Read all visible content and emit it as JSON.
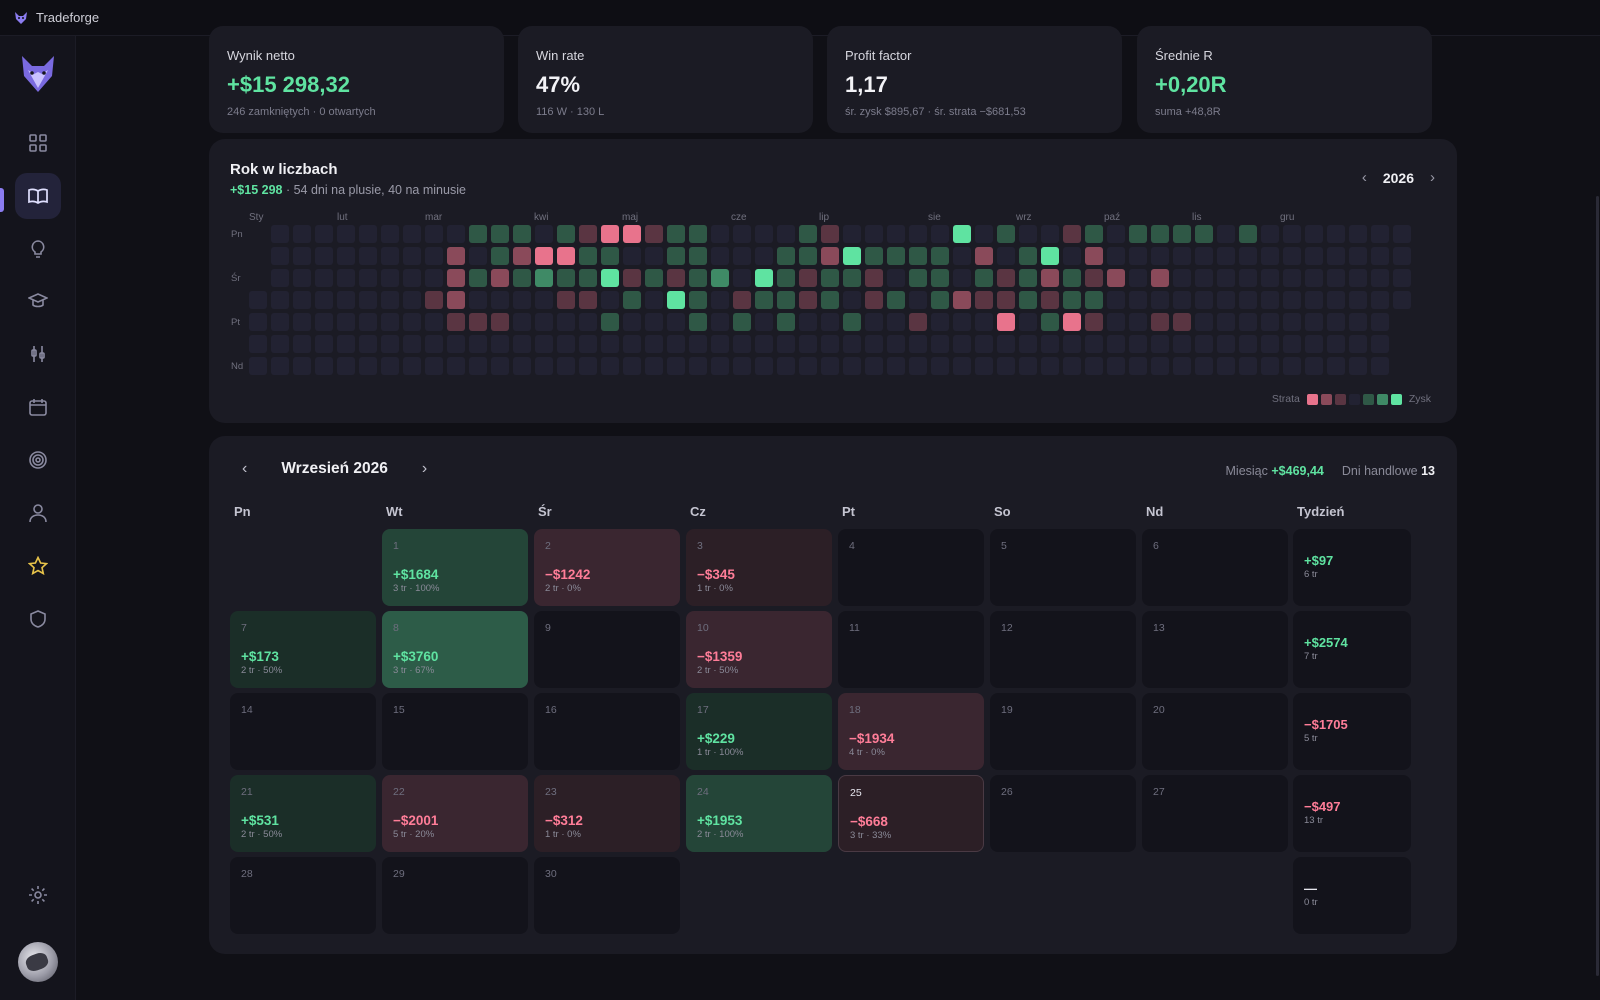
{
  "app": {
    "title": "Tradeforge"
  },
  "stats": [
    {
      "label": "Wynik netto",
      "value": "+$15 298,32",
      "sub": "246 zamkniętych · 0 otwartych",
      "accent": "green"
    },
    {
      "label": "Win rate",
      "value": "47%",
      "sub": "116 W · 130 L",
      "accent": "white"
    },
    {
      "label": "Profit factor",
      "value": "1,17",
      "sub": "śr. zysk $895,67 · śr. strata −$681,53",
      "accent": "white"
    },
    {
      "label": "Średnie R",
      "value": "+0,20R",
      "sub": "suma +48,8R",
      "accent": "green"
    }
  ],
  "year": {
    "title": "Rok w liczbach",
    "total": "+$15 298",
    "summary": " · 54 dni na plusie, 40 na minusie",
    "year": "2026",
    "months": [
      "Sty",
      "lut",
      "mar",
      "kwi",
      "maj",
      "cze",
      "lip",
      "sie",
      "wrz",
      "paź",
      "lis",
      "gru"
    ],
    "day_labels": [
      "Pn",
      "Śr",
      "Pt",
      "Nd"
    ],
    "legend_loss": "Strata",
    "legend_gain": "Zysk",
    "colors": {
      "empty": "#222232",
      "g1": "#2f5846",
      "g2": "#3f8a66",
      "g3": "#5fe3a1",
      "r1": "#5a3542",
      "r2": "#8a4a5a",
      "r3": "#e8738c"
    },
    "levels": [
      "..........ggg.gvvvvgg....gv.......g..vg.gggg.g...................",
      ".........r.grRrgg..gg...ggr.gggg.r.gG.r.........................",
      ".........rgrgGgg.vgvgG.ggvggv.gg.gvgrgvr.r......................",
      "........vr....vv.g.Gg.vggvg.vg.grvvgvgg......................",
      ".........vvv....g...g.g.g..g..v.....gRv..vv....................."
    ]
  },
  "calendar": {
    "title": "Wrzesień 2026",
    "month_label": "Miesiąc",
    "month_total": "+$469,44",
    "days_label": "Dni handlowe",
    "days_count": "13",
    "headers": [
      "Pn",
      "Wt",
      "Śr",
      "Cz",
      "Pt",
      "So",
      "Nd",
      "Tydzień"
    ],
    "days": [
      {
        "n": "1",
        "pnl": "+$1684",
        "meta": "3 tr · 100%",
        "style": "pos2"
      },
      {
        "n": "2",
        "pnl": "−$1242",
        "meta": "2 tr · 0%",
        "style": "neg2"
      },
      {
        "n": "3",
        "pnl": "−$345",
        "meta": "1 tr · 0%",
        "style": "neg"
      },
      {
        "n": "4",
        "pnl": "",
        "meta": "",
        "style": ""
      },
      {
        "n": "5",
        "pnl": "",
        "meta": "",
        "style": ""
      },
      {
        "n": "6",
        "pnl": "",
        "meta": "",
        "style": ""
      },
      {
        "n": "7",
        "pnl": "+$173",
        "meta": "2 tr · 50%",
        "style": "pos"
      },
      {
        "n": "8",
        "pnl": "+$3760",
        "meta": "3 tr · 67%",
        "style": "pos3"
      },
      {
        "n": "9",
        "pnl": "",
        "meta": "",
        "style": ""
      },
      {
        "n": "10",
        "pnl": "−$1359",
        "meta": "2 tr · 50%",
        "style": "neg2"
      },
      {
        "n": "11",
        "pnl": "",
        "meta": "",
        "style": ""
      },
      {
        "n": "12",
        "pnl": "",
        "meta": "",
        "style": ""
      },
      {
        "n": "13",
        "pnl": "",
        "meta": "",
        "style": ""
      },
      {
        "n": "14",
        "pnl": "",
        "meta": "",
        "style": ""
      },
      {
        "n": "15",
        "pnl": "",
        "meta": "",
        "style": ""
      },
      {
        "n": "16",
        "pnl": "",
        "meta": "",
        "style": ""
      },
      {
        "n": "17",
        "pnl": "+$229",
        "meta": "1 tr · 100%",
        "style": "pos"
      },
      {
        "n": "18",
        "pnl": "−$1934",
        "meta": "4 tr · 0%",
        "style": "neg2"
      },
      {
        "n": "19",
        "pnl": "",
        "meta": "",
        "style": ""
      },
      {
        "n": "20",
        "pnl": "",
        "meta": "",
        "style": ""
      },
      {
        "n": "21",
        "pnl": "+$531",
        "meta": "2 tr · 50%",
        "style": "pos"
      },
      {
        "n": "22",
        "pnl": "−$2001",
        "meta": "5 tr · 20%",
        "style": "neg2"
      },
      {
        "n": "23",
        "pnl": "−$312",
        "meta": "1 tr · 0%",
        "style": "neg"
      },
      {
        "n": "24",
        "pnl": "+$1953",
        "meta": "2 tr · 100%",
        "style": "pos2"
      },
      {
        "n": "25",
        "pnl": "−$668",
        "meta": "3 tr · 33%",
        "style": "neg today"
      },
      {
        "n": "26",
        "pnl": "",
        "meta": "",
        "style": ""
      },
      {
        "n": "27",
        "pnl": "",
        "meta": "",
        "style": ""
      },
      {
        "n": "28",
        "pnl": "",
        "meta": "",
        "style": ""
      },
      {
        "n": "29",
        "pnl": "",
        "meta": "",
        "style": ""
      },
      {
        "n": "30",
        "pnl": "",
        "meta": "",
        "style": ""
      }
    ],
    "weeks": [
      {
        "pnl": "+$97",
        "meta": "6 tr",
        "tone": "g"
      },
      {
        "pnl": "+$2574",
        "meta": "7 tr",
        "tone": "g"
      },
      {
        "pnl": "−$1705",
        "meta": "5 tr",
        "tone": "r"
      },
      {
        "pnl": "−$497",
        "meta": "13 tr",
        "tone": "r"
      },
      {
        "pnl": "—",
        "meta": "0 tr",
        "tone": "n"
      }
    ]
  },
  "sidebar": {
    "icons": [
      "dashboard-icon",
      "journal-icon",
      "ideas-icon",
      "learn-icon",
      "strategy-icon",
      "calendar-icon",
      "goals-icon",
      "profile-icon",
      "favorites-icon",
      "security-icon",
      "settings-icon"
    ]
  }
}
